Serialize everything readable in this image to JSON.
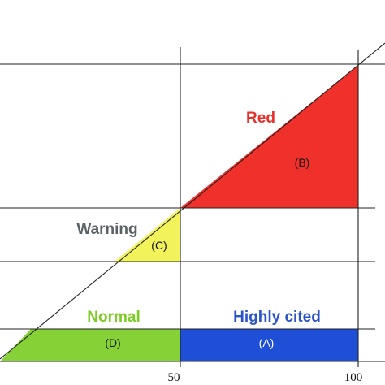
{
  "regions": {
    "red": {
      "title": "Red",
      "code": "(B)",
      "color": "#f0302a",
      "title_color": "#e8302a"
    },
    "warning": {
      "title": "Warning",
      "code": "(C)",
      "color": "#f2f25a",
      "title_color": "#5a6266"
    },
    "normal": {
      "title": "Normal",
      "code": "(D)",
      "color": "#86d136",
      "title_color": "#7ccc23"
    },
    "highly_cited": {
      "title": "Highly cited",
      "code": "(A)",
      "color": "#1f4fd6",
      "title_color": "#2a54c8"
    }
  },
  "x_ticks": [
    "50",
    "100"
  ]
}
